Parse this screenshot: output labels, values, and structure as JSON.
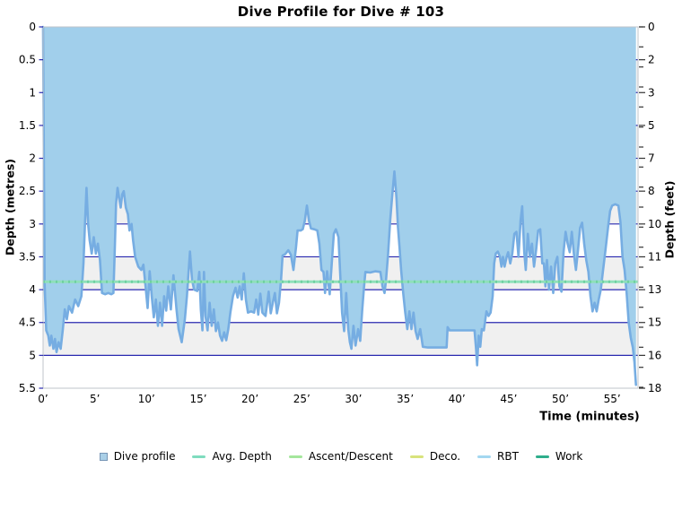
{
  "chart_data": {
    "type": "area",
    "title": "Dive Profile for Dive # 103",
    "x": {
      "label": "Time (minutes)",
      "ticks": [
        "0’",
        "5’",
        "10’",
        "15’",
        "20’",
        "25’",
        "30’",
        "35’",
        "40’",
        "45’",
        "50’",
        "55’"
      ],
      "tick_values": [
        0,
        5,
        10,
        15,
        20,
        25,
        30,
        35,
        40,
        45,
        50,
        55
      ],
      "range": [
        0,
        57.5
      ]
    },
    "y_left": {
      "label": "Depth (metres)",
      "ticks": [
        "0",
        "0.5",
        "1",
        "1.5",
        "2",
        "2.5",
        "3",
        "3.5",
        "4",
        "4.5",
        "5",
        "5.5"
      ],
      "tick_values": [
        0,
        0.5,
        1,
        1.5,
        2,
        2.5,
        3,
        3.5,
        4,
        4.5,
        5,
        5.5
      ],
      "range": [
        0,
        5.5
      ],
      "gridlines_every_m": 0.5
    },
    "y_right": {
      "label": "Depth (feet)",
      "tick_labels": [
        "0",
        "2",
        "3",
        "5",
        "7",
        "8",
        "10",
        "11",
        "13",
        "15",
        "16",
        "18"
      ],
      "minor_tick_feet_range": [
        0,
        18
      ]
    },
    "avg_depth_m": 3.88,
    "series": [
      {
        "name": "Dive profile",
        "unit": "metres",
        "points": [
          [
            0,
            0
          ],
          [
            0.15,
            3.9
          ],
          [
            0.3,
            4.62
          ],
          [
            0.5,
            4.7
          ],
          [
            0.65,
            4.85
          ],
          [
            0.8,
            4.7
          ],
          [
            1,
            4.9
          ],
          [
            1.15,
            4.75
          ],
          [
            1.3,
            4.95
          ],
          [
            1.5,
            4.8
          ],
          [
            1.7,
            4.9
          ],
          [
            1.9,
            4.62
          ],
          [
            2.1,
            4.3
          ],
          [
            2.3,
            4.45
          ],
          [
            2.5,
            4.25
          ],
          [
            2.8,
            4.35
          ],
          [
            3.1,
            4.15
          ],
          [
            3.4,
            4.25
          ],
          [
            3.7,
            4.1
          ],
          [
            3.9,
            3.6
          ],
          [
            4.05,
            3
          ],
          [
            4.2,
            2.45
          ],
          [
            4.35,
            3
          ],
          [
            4.5,
            3.25
          ],
          [
            4.7,
            3.45
          ],
          [
            4.9,
            3.2
          ],
          [
            5.1,
            3.45
          ],
          [
            5.3,
            3.3
          ],
          [
            5.5,
            3.55
          ],
          [
            5.7,
            4.05
          ],
          [
            6,
            4.07
          ],
          [
            6.3,
            4.05
          ],
          [
            6.6,
            4.07
          ],
          [
            6.8,
            4.05
          ],
          [
            6.95,
            3.3
          ],
          [
            7.05,
            2.7
          ],
          [
            7.2,
            2.45
          ],
          [
            7.35,
            2.6
          ],
          [
            7.5,
            2.75
          ],
          [
            7.65,
            2.55
          ],
          [
            7.8,
            2.5
          ],
          [
            8,
            2.75
          ],
          [
            8.2,
            2.85
          ],
          [
            8.35,
            3.1
          ],
          [
            8.55,
            3
          ],
          [
            8.7,
            3.25
          ],
          [
            8.9,
            3.5
          ],
          [
            9.2,
            3.65
          ],
          [
            9.5,
            3.7
          ],
          [
            9.7,
            3.62
          ],
          [
            9.9,
            3.95
          ],
          [
            10.1,
            4.28
          ],
          [
            10.3,
            3.72
          ],
          [
            10.5,
            4.1
          ],
          [
            10.7,
            4.42
          ],
          [
            10.9,
            4.15
          ],
          [
            11.1,
            4.55
          ],
          [
            11.3,
            4.2
          ],
          [
            11.5,
            4.55
          ],
          [
            11.7,
            4.1
          ],
          [
            11.9,
            4.32
          ],
          [
            12.1,
            3.95
          ],
          [
            12.35,
            4.3
          ],
          [
            12.6,
            3.78
          ],
          [
            12.9,
            4.3
          ],
          [
            13.1,
            4.6
          ],
          [
            13.4,
            4.8
          ],
          [
            13.7,
            4.45
          ],
          [
            13.9,
            4.1
          ],
          [
            14.2,
            3.42
          ],
          [
            14.4,
            3.85
          ],
          [
            14.6,
            4
          ],
          [
            14.9,
            4.02
          ],
          [
            15.1,
            3.73
          ],
          [
            15.25,
            4.3
          ],
          [
            15.4,
            4.62
          ],
          [
            15.55,
            3.73
          ],
          [
            15.7,
            4.4
          ],
          [
            15.9,
            4.62
          ],
          [
            16.1,
            4.2
          ],
          [
            16.3,
            4.55
          ],
          [
            16.5,
            4.3
          ],
          [
            16.7,
            4.63
          ],
          [
            16.9,
            4.5
          ],
          [
            17.1,
            4.7
          ],
          [
            17.3,
            4.78
          ],
          [
            17.5,
            4.65
          ],
          [
            17.7,
            4.77
          ],
          [
            17.9,
            4.6
          ],
          [
            18.1,
            4.35
          ],
          [
            18.35,
            4.1
          ],
          [
            18.6,
            3.97
          ],
          [
            18.8,
            4.12
          ],
          [
            19,
            3.95
          ],
          [
            19.2,
            4.15
          ],
          [
            19.4,
            3.75
          ],
          [
            19.6,
            4.15
          ],
          [
            19.8,
            4.35
          ],
          [
            20.1,
            4.33
          ],
          [
            20.4,
            4.35
          ],
          [
            20.6,
            4.15
          ],
          [
            20.8,
            4.38
          ],
          [
            21,
            4.06
          ],
          [
            21.2,
            4.35
          ],
          [
            21.5,
            4.4
          ],
          [
            21.8,
            4.03
          ],
          [
            22,
            4.36
          ],
          [
            22.2,
            4.2
          ],
          [
            22.4,
            4.05
          ],
          [
            22.6,
            4.36
          ],
          [
            22.8,
            4.2
          ],
          [
            23,
            3.85
          ],
          [
            23.15,
            3.48
          ],
          [
            23.4,
            3.46
          ],
          [
            23.7,
            3.4
          ],
          [
            23.95,
            3.47
          ],
          [
            24.2,
            3.7
          ],
          [
            24.45,
            3.35
          ],
          [
            24.6,
            3.1
          ],
          [
            24.9,
            3.1
          ],
          [
            25.1,
            3.08
          ],
          [
            25.3,
            2.95
          ],
          [
            25.5,
            2.72
          ],
          [
            25.7,
            2.95
          ],
          [
            25.9,
            3.07
          ],
          [
            26.2,
            3.08
          ],
          [
            26.5,
            3.1
          ],
          [
            26.7,
            3.3
          ],
          [
            26.9,
            3.7
          ],
          [
            27.1,
            3.73
          ],
          [
            27.25,
            4.05
          ],
          [
            27.45,
            3.72
          ],
          [
            27.7,
            4.07
          ],
          [
            27.9,
            3.6
          ],
          [
            28.1,
            3.15
          ],
          [
            28.3,
            3.08
          ],
          [
            28.55,
            3.2
          ],
          [
            28.7,
            3.7
          ],
          [
            28.9,
            4.35
          ],
          [
            29.1,
            4.63
          ],
          [
            29.3,
            4.05
          ],
          [
            29.5,
            4.6
          ],
          [
            29.65,
            4.8
          ],
          [
            29.8,
            4.9
          ],
          [
            30,
            4.55
          ],
          [
            30.2,
            4.85
          ],
          [
            30.45,
            4.6
          ],
          [
            30.65,
            4.78
          ],
          [
            30.85,
            4.3
          ],
          [
            31,
            4
          ],
          [
            31.15,
            3.73
          ],
          [
            31.6,
            3.74
          ],
          [
            32.1,
            3.72
          ],
          [
            32.6,
            3.73
          ],
          [
            32.8,
            3.95
          ],
          [
            33,
            4.05
          ],
          [
            33.15,
            3.85
          ],
          [
            33.35,
            3.45
          ],
          [
            33.55,
            2.95
          ],
          [
            33.75,
            2.55
          ],
          [
            33.95,
            2.2
          ],
          [
            34.15,
            2.6
          ],
          [
            34.3,
            3.05
          ],
          [
            34.45,
            3.35
          ],
          [
            34.6,
            3.7
          ],
          [
            34.8,
            4.05
          ],
          [
            35,
            4.35
          ],
          [
            35.2,
            4.6
          ],
          [
            35.4,
            4.33
          ],
          [
            35.6,
            4.6
          ],
          [
            35.8,
            4.35
          ],
          [
            36,
            4.63
          ],
          [
            36.2,
            4.75
          ],
          [
            36.45,
            4.6
          ],
          [
            36.7,
            4.87
          ],
          [
            37.2,
            4.88
          ],
          [
            37.8,
            4.88
          ],
          [
            38.4,
            4.88
          ],
          [
            39,
            4.88
          ],
          [
            39.1,
            4.57
          ],
          [
            39.3,
            4.62
          ],
          [
            40,
            4.62
          ],
          [
            40.7,
            4.62
          ],
          [
            41.4,
            4.62
          ],
          [
            41.7,
            4.62
          ],
          [
            41.85,
            4.9
          ],
          [
            41.95,
            5.15
          ],
          [
            42.1,
            4.7
          ],
          [
            42.25,
            4.87
          ],
          [
            42.4,
            4.6
          ],
          [
            42.6,
            4.62
          ],
          [
            42.85,
            4.33
          ],
          [
            43.05,
            4.4
          ],
          [
            43.25,
            4.35
          ],
          [
            43.45,
            4.1
          ],
          [
            43.6,
            3.6
          ],
          [
            43.75,
            3.45
          ],
          [
            43.95,
            3.42
          ],
          [
            44.15,
            3.5
          ],
          [
            44.3,
            3.65
          ],
          [
            44.45,
            3.5
          ],
          [
            44.6,
            3.65
          ],
          [
            44.8,
            3.5
          ],
          [
            44.95,
            3.43
          ],
          [
            45.15,
            3.6
          ],
          [
            45.35,
            3.45
          ],
          [
            45.55,
            3.15
          ],
          [
            45.75,
            3.12
          ],
          [
            45.95,
            3.5
          ],
          [
            46.15,
            2.95
          ],
          [
            46.3,
            2.73
          ],
          [
            46.5,
            3.43
          ],
          [
            46.65,
            3.7
          ],
          [
            46.85,
            3.15
          ],
          [
            47.05,
            3.5
          ],
          [
            47.25,
            3.3
          ],
          [
            47.45,
            3.65
          ],
          [
            47.65,
            3.4
          ],
          [
            47.85,
            3.1
          ],
          [
            48.05,
            3.08
          ],
          [
            48.25,
            3.6
          ],
          [
            48.4,
            3.6
          ],
          [
            48.55,
            3.95
          ],
          [
            48.7,
            3.55
          ],
          [
            48.9,
            4
          ],
          [
            49.1,
            3.65
          ],
          [
            49.3,
            4.05
          ],
          [
            49.5,
            3.6
          ],
          [
            49.7,
            3.5
          ],
          [
            49.9,
            3.95
          ],
          [
            50.1,
            4.03
          ],
          [
            50.3,
            3.43
          ],
          [
            50.5,
            3.12
          ],
          [
            50.7,
            3.3
          ],
          [
            50.9,
            3.43
          ],
          [
            51.1,
            3.12
          ],
          [
            51.3,
            3.45
          ],
          [
            51.5,
            3.7
          ],
          [
            51.7,
            3.4
          ],
          [
            51.9,
            3.06
          ],
          [
            52.1,
            2.98
          ],
          [
            52.3,
            3.3
          ],
          [
            52.5,
            3.55
          ],
          [
            52.7,
            3.73
          ],
          [
            52.9,
            4.1
          ],
          [
            53.1,
            4.33
          ],
          [
            53.3,
            4.2
          ],
          [
            53.5,
            4.33
          ],
          [
            53.7,
            4.15
          ],
          [
            53.9,
            4
          ],
          [
            54.1,
            3.73
          ],
          [
            54.35,
            3.4
          ],
          [
            54.6,
            3.05
          ],
          [
            54.8,
            2.8
          ],
          [
            55,
            2.72
          ],
          [
            55.3,
            2.7
          ],
          [
            55.6,
            2.72
          ],
          [
            55.8,
            2.97
          ],
          [
            56,
            3.5
          ],
          [
            56.2,
            3.7
          ],
          [
            56.4,
            4.05
          ],
          [
            56.6,
            4.5
          ],
          [
            56.8,
            4.73
          ],
          [
            57,
            4.88
          ],
          [
            57.15,
            5.1
          ],
          [
            57.3,
            5.45
          ]
        ]
      }
    ],
    "colors": {
      "profile_fill": "#a1cfeb",
      "profile_stroke": "#76ade2",
      "gridline": "#2929b0",
      "band": "#f0f0f0",
      "plot_border": "#bfc5cb",
      "avg_line": "#8fe0ba",
      "avg_line_dash": "#6fd0a0",
      "tick_mark_right": "#333333"
    },
    "legend": {
      "items": [
        {
          "label": "Dive profile",
          "swatch": "square",
          "color": "#a9cfe7",
          "border": "#7796b6"
        },
        {
          "label": "Avg. Depth",
          "swatch": "line",
          "color": "#7fdcbe"
        },
        {
          "label": "Ascent/Descent",
          "swatch": "line",
          "color": "#a4e69c"
        },
        {
          "label": "Deco.",
          "swatch": "line",
          "color": "#d8e37c"
        },
        {
          "label": "RBT",
          "swatch": "line",
          "color": "#a3d7f0"
        },
        {
          "label": "Work",
          "swatch": "line",
          "color": "#2fae8b"
        }
      ]
    }
  }
}
